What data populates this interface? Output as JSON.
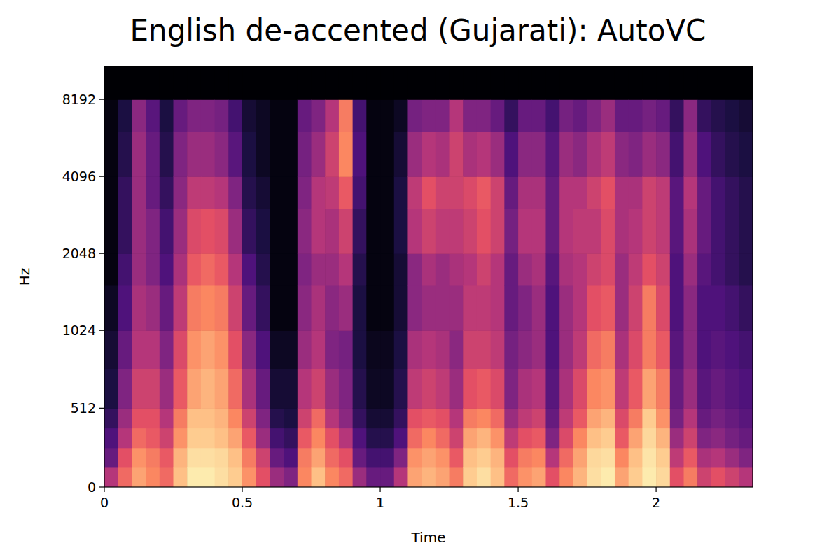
{
  "chart_data": {
    "type": "heatmap",
    "title": "English de-accented (Gujarati): AutoVC",
    "x_label": "Time",
    "y_label": "Hz",
    "xlim": [
      0,
      2.35
    ],
    "ylim": [
      0,
      11025
    ],
    "xticks": [
      0,
      0.5,
      1,
      1.5,
      2
    ],
    "yticks": [
      0,
      512,
      1024,
      2048,
      4096,
      8192
    ],
    "log": "y",
    "tick_labels": true,
    "color_range": [
      -80,
      0
    ],
    "x_bins": [
      0,
      0.05,
      0.1,
      0.15,
      0.2,
      0.25,
      0.3,
      0.35,
      0.4,
      0.45,
      0.5,
      0.55,
      0.6,
      0.65,
      0.7,
      0.75,
      0.8,
      0.85,
      0.9,
      0.95,
      1.0,
      1.05,
      1.1,
      1.15,
      1.2,
      1.25,
      1.3,
      1.35,
      1.4,
      1.45,
      1.5,
      1.55,
      1.6,
      1.65,
      1.7,
      1.75,
      1.8,
      1.85,
      1.9,
      1.95,
      2.0,
      2.05,
      2.1,
      2.15,
      2.2,
      2.25,
      2.3,
      2.35
    ],
    "y_bins": [
      0,
      128,
      256,
      384,
      512,
      768,
      1024,
      1536,
      2048,
      3072,
      4096,
      6144,
      8192,
      11025
    ],
    "cells": [
      [
        -40,
        -55,
        -60,
        -65,
        -70,
        -72,
        -75,
        -78,
        -78,
        -78,
        -78,
        -78,
        -80
      ],
      [
        -25,
        -30,
        -40,
        -45,
        -50,
        -55,
        -60,
        -62,
        -65,
        -65,
        -68,
        -70,
        -80
      ],
      [
        -15,
        -18,
        -25,
        -30,
        -35,
        -40,
        -42,
        -45,
        -45,
        -45,
        -45,
        -48,
        -80
      ],
      [
        -20,
        -22,
        -28,
        -30,
        -35,
        -40,
        -45,
        -50,
        -50,
        -55,
        -55,
        -58,
        -80
      ],
      [
        -25,
        -28,
        -35,
        -40,
        -45,
        -50,
        -55,
        -60,
        -62,
        -65,
        -68,
        -70,
        -80
      ],
      [
        -10,
        -12,
        -18,
        -22,
        -28,
        -32,
        -38,
        -42,
        -45,
        -48,
        -50,
        -55,
        -80
      ],
      [
        -3,
        -5,
        -8,
        -10,
        -15,
        -18,
        -22,
        -28,
        -32,
        -38,
        -45,
        -50,
        -80
      ],
      [
        -3,
        -5,
        -8,
        -10,
        -12,
        -15,
        -20,
        -25,
        -30,
        -38,
        -45,
        -50,
        -80
      ],
      [
        -5,
        -6,
        -10,
        -12,
        -15,
        -18,
        -22,
        -28,
        -32,
        -40,
        -48,
        -52,
        -80
      ],
      [
        -8,
        -10,
        -15,
        -20,
        -25,
        -30,
        -35,
        -40,
        -45,
        -50,
        -58,
        -62,
        -80
      ],
      [
        -18,
        -22,
        -28,
        -35,
        -42,
        -48,
        -55,
        -60,
        -65,
        -68,
        -70,
        -72,
        -80
      ],
      [
        -30,
        -35,
        -45,
        -50,
        -55,
        -60,
        -65,
        -68,
        -70,
        -72,
        -75,
        -75,
        -80
      ],
      [
        -45,
        -55,
        -62,
        -68,
        -72,
        -75,
        -78,
        -78,
        -78,
        -78,
        -78,
        -78,
        -80
      ],
      [
        -50,
        -60,
        -65,
        -70,
        -72,
        -75,
        -78,
        -78,
        -78,
        -78,
        -78,
        -78,
        -80
      ],
      [
        -20,
        -22,
        -28,
        -35,
        -40,
        -45,
        -48,
        -50,
        -48,
        -50,
        -52,
        -55,
        -80
      ],
      [
        -10,
        -15,
        -20,
        -25,
        -35,
        -40,
        -42,
        -45,
        -40,
        -40,
        -45,
        -50,
        -80
      ],
      [
        -20,
        -25,
        -30,
        -40,
        -45,
        -50,
        -48,
        -45,
        -42,
        -38,
        -35,
        -40,
        -80
      ],
      [
        -25,
        -30,
        -40,
        -48,
        -50,
        -52,
        -45,
        -40,
        -35,
        -28,
        -20,
        -22,
        -80
      ],
      [
        -45,
        -55,
        -60,
        -65,
        -68,
        -70,
        -70,
        -68,
        -65,
        -62,
        -60,
        -62,
        -80
      ],
      [
        -55,
        -62,
        -68,
        -72,
        -75,
        -76,
        -78,
        -78,
        -78,
        -78,
        -78,
        -78,
        -80
      ],
      [
        -55,
        -62,
        -68,
        -72,
        -75,
        -76,
        -78,
        -78,
        -78,
        -78,
        -78,
        -78,
        -80
      ],
      [
        -40,
        -50,
        -60,
        -65,
        -68,
        -70,
        -72,
        -72,
        -70,
        -70,
        -72,
        -75,
        -80
      ],
      [
        -15,
        -18,
        -25,
        -30,
        -38,
        -42,
        -48,
        -48,
        -40,
        -38,
        -45,
        -52,
        -80
      ],
      [
        -12,
        -15,
        -20,
        -28,
        -35,
        -40,
        -45,
        -42,
        -35,
        -30,
        -40,
        -50,
        -80
      ],
      [
        -15,
        -18,
        -25,
        -30,
        -38,
        -42,
        -45,
        -45,
        -38,
        -35,
        -42,
        -50,
        -80
      ],
      [
        -22,
        -28,
        -35,
        -40,
        -45,
        -48,
        -45,
        -42,
        -38,
        -35,
        -35,
        -40,
        -80
      ],
      [
        -8,
        -10,
        -15,
        -22,
        -30,
        -35,
        -38,
        -40,
        -35,
        -32,
        -42,
        -50,
        -80
      ],
      [
        -5,
        -8,
        -12,
        -20,
        -28,
        -35,
        -38,
        -35,
        -30,
        -28,
        -40,
        -50,
        -80
      ],
      [
        -10,
        -12,
        -18,
        -25,
        -32,
        -38,
        -40,
        -40,
        -35,
        -35,
        -45,
        -55,
        -80
      ],
      [
        -25,
        -30,
        -38,
        -45,
        -50,
        -52,
        -55,
        -55,
        -52,
        -55,
        -60,
        -65,
        -80
      ],
      [
        -18,
        -22,
        -30,
        -38,
        -42,
        -48,
        -50,
        -45,
        -40,
        -42,
        -48,
        -55,
        -80
      ],
      [
        -15,
        -20,
        -28,
        -35,
        -40,
        -45,
        -45,
        -42,
        -40,
        -42,
        -48,
        -55,
        -80
      ],
      [
        -30,
        -40,
        -50,
        -55,
        -58,
        -60,
        -60,
        -58,
        -55,
        -55,
        -58,
        -62,
        -80
      ],
      [
        -20,
        -25,
        -32,
        -38,
        -42,
        -45,
        -45,
        -42,
        -40,
        -40,
        -45,
        -52,
        -80
      ],
      [
        -12,
        -15,
        -20,
        -28,
        -32,
        -38,
        -40,
        -40,
        -38,
        -40,
        -48,
        -55,
        -80
      ],
      [
        -5,
        -6,
        -10,
        -15,
        -20,
        -25,
        -30,
        -35,
        -38,
        -35,
        -42,
        -50,
        -80
      ],
      [
        -3,
        -5,
        -8,
        -12,
        -18,
        -22,
        -28,
        -32,
        -32,
        -30,
        -38,
        -45,
        -80
      ],
      [
        -15,
        -20,
        -28,
        -32,
        -38,
        -42,
        -45,
        -45,
        -42,
        -42,
        -48,
        -55,
        -80
      ],
      [
        -8,
        -10,
        -15,
        -22,
        -28,
        -32,
        -35,
        -38,
        -40,
        -42,
        -50,
        -55,
        -80
      ],
      [
        -3,
        -4,
        -6,
        -8,
        -15,
        -22,
        -22,
        -30,
        -35,
        -35,
        -45,
        -52,
        -80
      ],
      [
        -6,
        -8,
        -12,
        -18,
        -22,
        -28,
        -32,
        -35,
        -38,
        -38,
        -48,
        -55,
        -80
      ],
      [
        -30,
        -38,
        -45,
        -52,
        -55,
        -58,
        -60,
        -60,
        -58,
        -58,
        -62,
        -65,
        -80
      ],
      [
        -22,
        -28,
        -35,
        -40,
        -45,
        -48,
        -48,
        -45,
        -42,
        -40,
        -45,
        -48,
        -80
      ],
      [
        -35,
        -42,
        -50,
        -55,
        -58,
        -60,
        -60,
        -58,
        -55,
        -55,
        -60,
        -65,
        -80
      ],
      [
        -30,
        -40,
        -48,
        -52,
        -55,
        -58,
        -60,
        -62,
        -62,
        -62,
        -65,
        -68,
        -80
      ],
      [
        -35,
        -45,
        -52,
        -55,
        -58,
        -60,
        -62,
        -65,
        -65,
        -65,
        -68,
        -70,
        -80
      ],
      [
        -40,
        -50,
        -55,
        -58,
        -60,
        -62,
        -65,
        -68,
        -68,
        -68,
        -70,
        -72,
        -80
      ]
    ]
  }
}
